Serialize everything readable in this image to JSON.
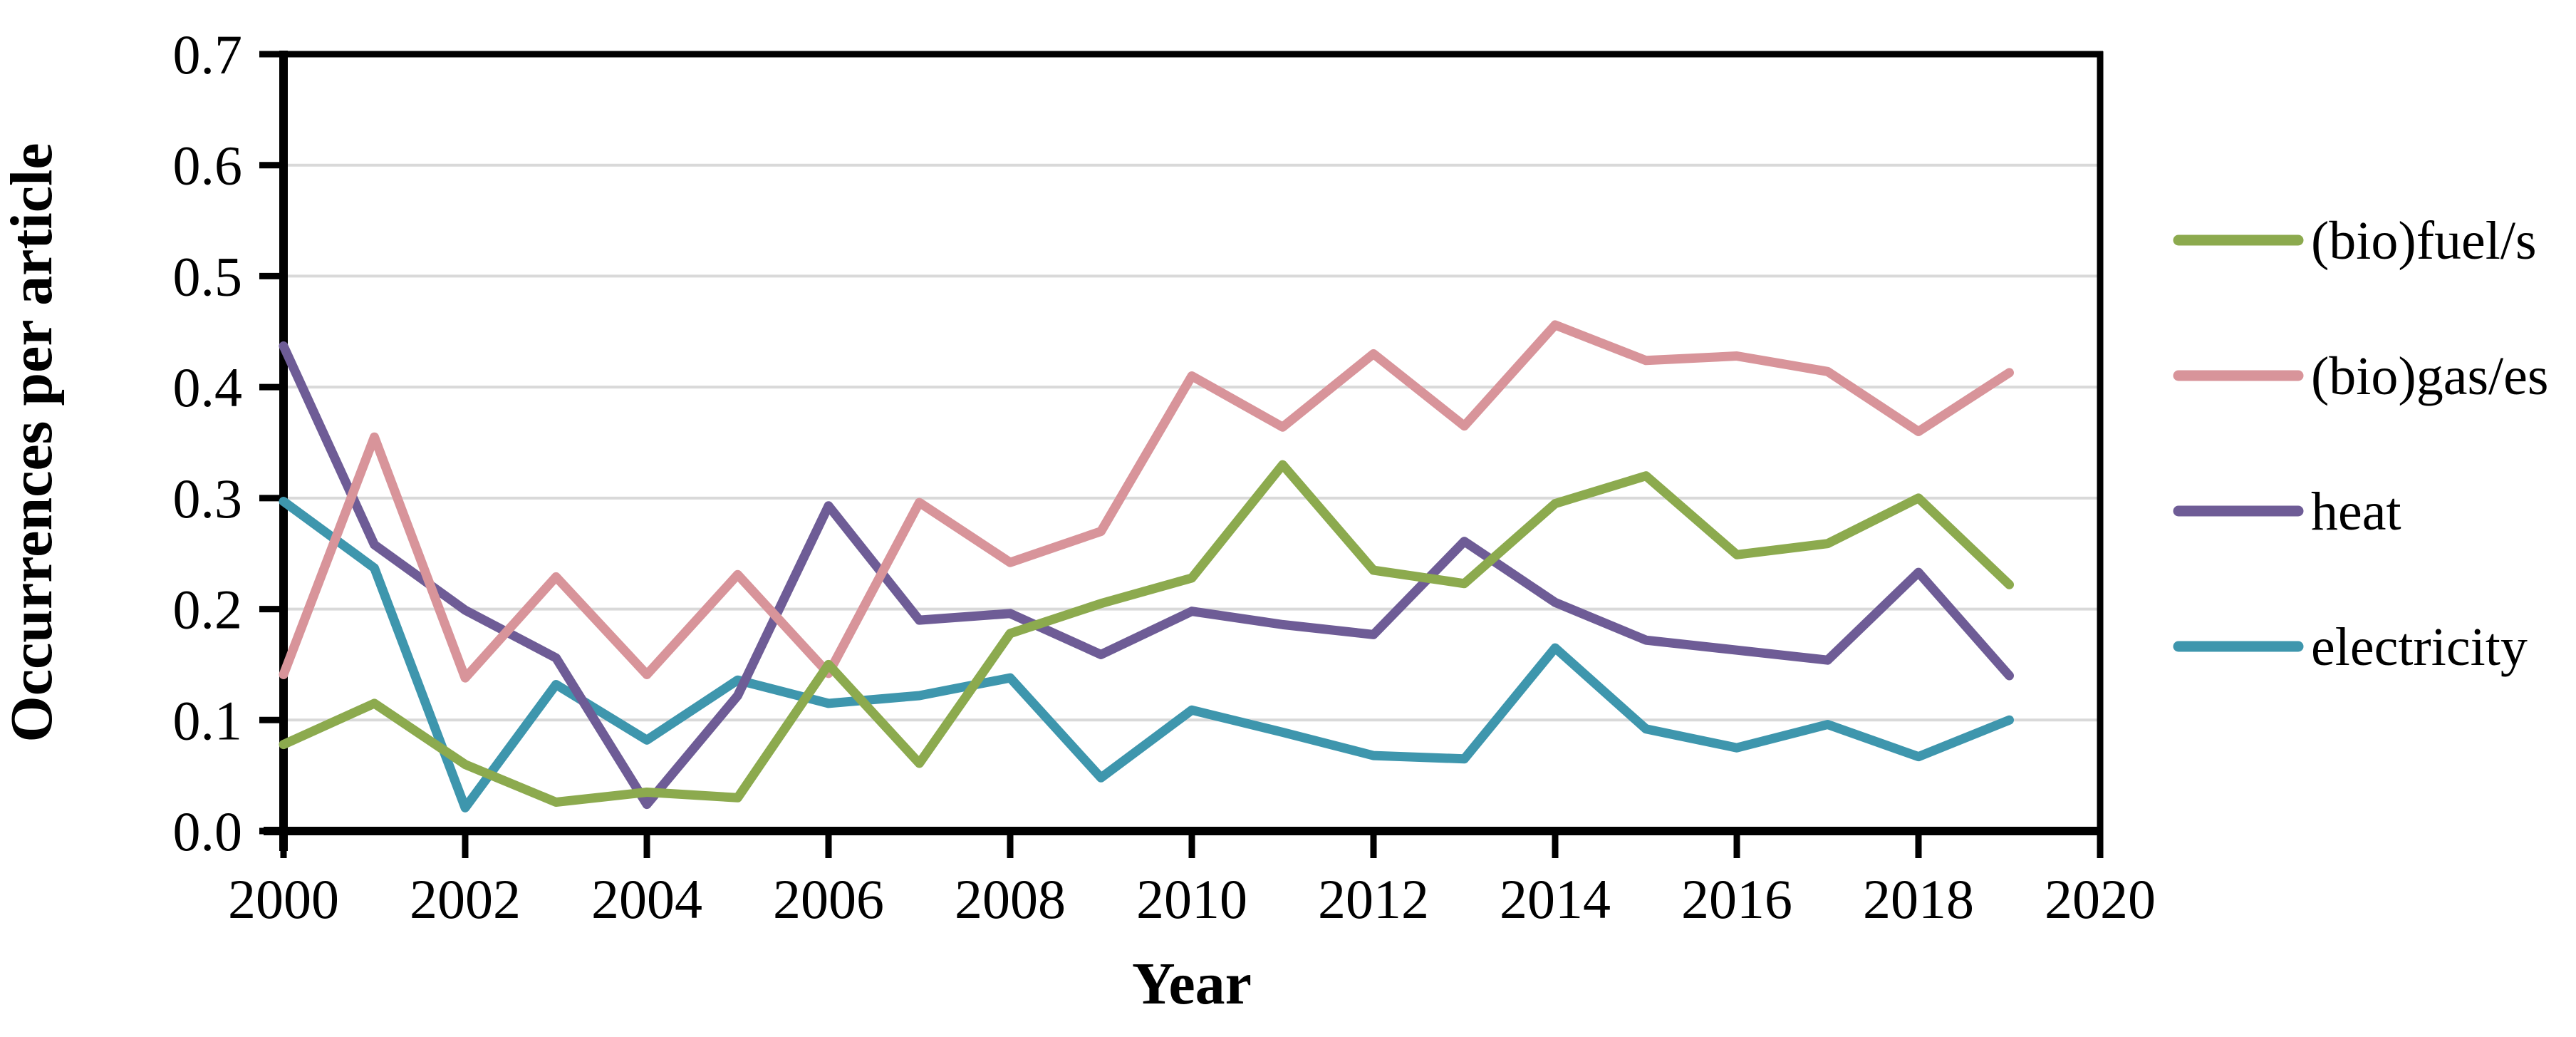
{
  "chart_data": {
    "type": "line",
    "title": "",
    "xlabel": "Year",
    "ylabel": "Occurrences per article",
    "xlim": [
      2000,
      2020
    ],
    "ylim": [
      0.0,
      0.7
    ],
    "x_tick_step": 2,
    "y_tick_step": 0.1,
    "x_tick_labels": [
      "2000",
      "2002",
      "2004",
      "2006",
      "2008",
      "2010",
      "2012",
      "2014",
      "2016",
      "2018",
      "2020"
    ],
    "y_tick_labels": [
      "0.0",
      "0.1",
      "0.2",
      "0.3",
      "0.4",
      "0.5",
      "0.6",
      "0.7"
    ],
    "grid": "horizontal",
    "gridline_color": "#D9D9D9",
    "axis_color": "#000000",
    "legend_position": "right",
    "x": [
      2000,
      2001,
      2002,
      2003,
      2004,
      2005,
      2006,
      2007,
      2008,
      2009,
      2010,
      2011,
      2012,
      2013,
      2014,
      2015,
      2016,
      2017,
      2018,
      2019
    ],
    "series": [
      {
        "name": "(bio)fuel/s",
        "color": "#8CAA4E",
        "values": [
          0.078,
          0.115,
          0.06,
          0.026,
          0.035,
          0.03,
          0.15,
          0.061,
          0.178,
          0.205,
          0.228,
          0.33,
          0.235,
          0.223,
          0.295,
          0.32,
          0.249,
          0.259,
          0.3,
          0.222
        ]
      },
      {
        "name": "(bio)gas/es",
        "color": "#D8949A",
        "values": [
          0.141,
          0.355,
          0.138,
          0.229,
          0.141,
          0.231,
          0.142,
          0.296,
          0.242,
          0.27,
          0.41,
          0.364,
          0.43,
          0.365,
          0.456,
          0.424,
          0.428,
          0.414,
          0.36,
          0.413
        ]
      },
      {
        "name": "heat",
        "color": "#6E5C96",
        "values": [
          0.437,
          0.258,
          0.199,
          0.156,
          0.024,
          0.122,
          0.293,
          0.19,
          0.196,
          0.159,
          0.198,
          0.186,
          0.177,
          0.261,
          0.206,
          0.172,
          0.163,
          0.154,
          0.233,
          0.14
        ]
      },
      {
        "name": "electricity",
        "color": "#3E96AD",
        "values": [
          0.297,
          0.237,
          0.021,
          0.132,
          0.082,
          0.136,
          0.115,
          0.122,
          0.138,
          0.048,
          0.109,
          0.089,
          0.068,
          0.065,
          0.165,
          0.092,
          0.075,
          0.096,
          0.067,
          0.1
        ]
      }
    ]
  }
}
